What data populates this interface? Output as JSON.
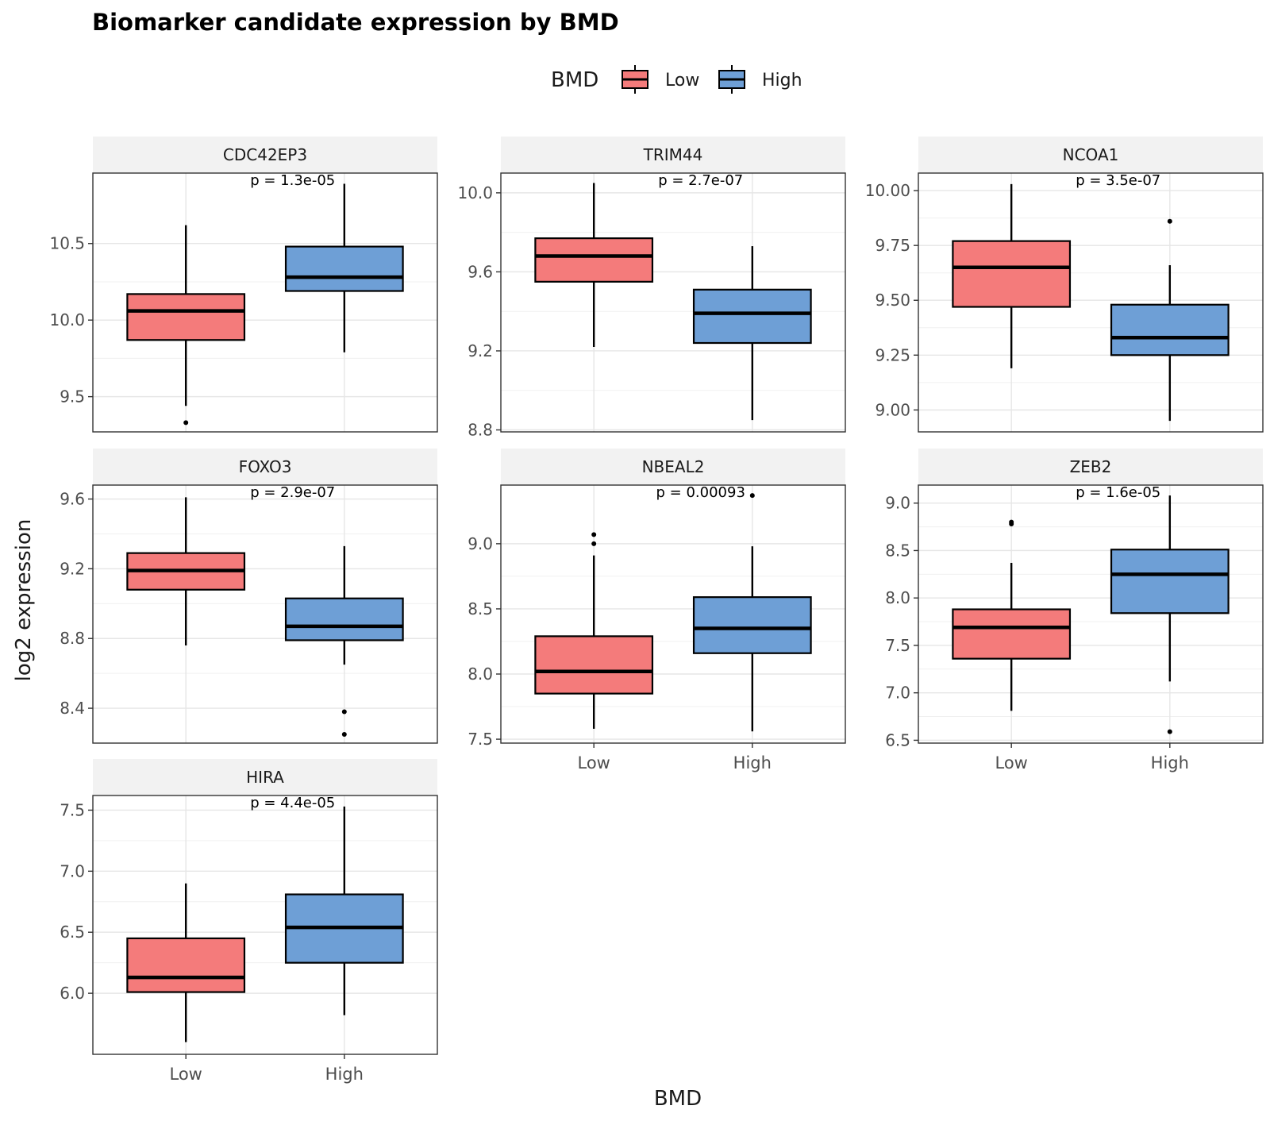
{
  "chart_data": {
    "type": "boxplot",
    "title": "Biomarker candidate expression by BMD",
    "xlabel": "BMD",
    "ylabel": "log2 expression",
    "legend": {
      "title": "BMD",
      "position": "top",
      "entries": [
        {
          "name": "Low",
          "color": "#F47B7B"
        },
        {
          "name": "High",
          "color": "#6E9FD6"
        }
      ]
    },
    "categories": [
      "Low",
      "High"
    ],
    "facets": [
      {
        "name": "CDC42EP3",
        "pvalue": "p = 1.3e-05",
        "ylim": [
          9.27,
          10.96
        ],
        "ticks": [
          9.5,
          10.0,
          10.5
        ],
        "tick_labels": [
          "9.5",
          "10.0",
          "10.5"
        ],
        "boxes": [
          {
            "group": "Low",
            "whisker_low": 9.44,
            "q1": 9.87,
            "median": 10.06,
            "q3": 10.17,
            "whisker_high": 10.62,
            "outliers": [
              9.33
            ]
          },
          {
            "group": "High",
            "whisker_low": 9.79,
            "q1": 10.19,
            "median": 10.28,
            "q3": 10.48,
            "whisker_high": 10.89,
            "outliers": []
          }
        ]
      },
      {
        "name": "TRIM44",
        "pvalue": "p = 2.7e-07",
        "ylim": [
          8.79,
          10.1
        ],
        "ticks": [
          8.8,
          9.2,
          9.6,
          10.0
        ],
        "tick_labels": [
          "8.8",
          "9.2",
          "9.6",
          "10.0"
        ],
        "boxes": [
          {
            "group": "Low",
            "whisker_low": 9.22,
            "q1": 9.55,
            "median": 9.68,
            "q3": 9.77,
            "whisker_high": 10.05,
            "outliers": []
          },
          {
            "group": "High",
            "whisker_low": 8.85,
            "q1": 9.24,
            "median": 9.39,
            "q3": 9.51,
            "whisker_high": 9.73,
            "outliers": []
          }
        ]
      },
      {
        "name": "NCOA1",
        "pvalue": "p = 3.5e-07",
        "ylim": [
          8.9,
          10.08
        ],
        "ticks": [
          9.0,
          9.25,
          9.5,
          9.75,
          10.0
        ],
        "tick_labels": [
          "9.00",
          "9.25",
          "9.50",
          "9.75",
          "10.00"
        ],
        "boxes": [
          {
            "group": "Low",
            "whisker_low": 9.19,
            "q1": 9.47,
            "median": 9.65,
            "q3": 9.77,
            "whisker_high": 10.03,
            "outliers": []
          },
          {
            "group": "High",
            "whisker_low": 8.95,
            "q1": 9.25,
            "median": 9.33,
            "q3": 9.48,
            "whisker_high": 9.66,
            "outliers": [
              9.86
            ]
          }
        ]
      },
      {
        "name": "FOXO3",
        "pvalue": "p = 2.9e-07",
        "ylim": [
          8.2,
          9.68
        ],
        "ticks": [
          8.4,
          8.8,
          9.2,
          9.6
        ],
        "tick_labels": [
          "8.4",
          "8.8",
          "9.2",
          "9.6"
        ],
        "boxes": [
          {
            "group": "Low",
            "whisker_low": 8.76,
            "q1": 9.08,
            "median": 9.19,
            "q3": 9.29,
            "whisker_high": 9.61,
            "outliers": []
          },
          {
            "group": "High",
            "whisker_low": 8.65,
            "q1": 8.79,
            "median": 8.87,
            "q3": 9.03,
            "whisker_high": 9.33,
            "outliers": [
              8.38,
              8.25
            ]
          }
        ]
      },
      {
        "name": "NBEAL2",
        "pvalue": "p = 0.00093",
        "ylim": [
          7.47,
          9.45
        ],
        "ticks": [
          7.5,
          8.0,
          8.5,
          9.0
        ],
        "tick_labels": [
          "7.5",
          "8.0",
          "8.5",
          "9.0"
        ],
        "boxes": [
          {
            "group": "Low",
            "whisker_low": 7.58,
            "q1": 7.85,
            "median": 8.02,
            "q3": 8.29,
            "whisker_high": 8.91,
            "outliers": [
              9.0,
              9.07
            ]
          },
          {
            "group": "High",
            "whisker_low": 7.56,
            "q1": 8.16,
            "median": 8.35,
            "q3": 8.59,
            "whisker_high": 8.98,
            "outliers": [
              9.37
            ]
          }
        ]
      },
      {
        "name": "ZEB2",
        "pvalue": "p = 1.6e-05",
        "ylim": [
          6.47,
          9.19
        ],
        "ticks": [
          6.5,
          7.0,
          7.5,
          8.0,
          8.5,
          9.0
        ],
        "tick_labels": [
          "6.5",
          "7.0",
          "7.5",
          "8.0",
          "8.5",
          "9.0"
        ],
        "boxes": [
          {
            "group": "Low",
            "whisker_low": 6.81,
            "q1": 7.36,
            "median": 7.69,
            "q3": 7.88,
            "whisker_high": 8.37,
            "outliers": [
              8.78,
              8.8
            ]
          },
          {
            "group": "High",
            "whisker_low": 7.12,
            "q1": 7.84,
            "median": 8.25,
            "q3": 8.51,
            "whisker_high": 9.08,
            "outliers": [
              6.59
            ]
          }
        ]
      },
      {
        "name": "HIRA",
        "pvalue": "p = 4.4e-05",
        "ylim": [
          5.5,
          7.62
        ],
        "ticks": [
          6.0,
          6.5,
          7.0,
          7.5
        ],
        "tick_labels": [
          "6.0",
          "6.5",
          "7.0",
          "7.5"
        ],
        "boxes": [
          {
            "group": "Low",
            "whisker_low": 5.6,
            "q1": 6.01,
            "median": 6.13,
            "q3": 6.45,
            "whisker_high": 6.9,
            "outliers": []
          },
          {
            "group": "High",
            "whisker_low": 5.82,
            "q1": 6.25,
            "median": 6.54,
            "q3": 6.81,
            "whisker_high": 7.53,
            "outliers": []
          }
        ]
      }
    ]
  }
}
